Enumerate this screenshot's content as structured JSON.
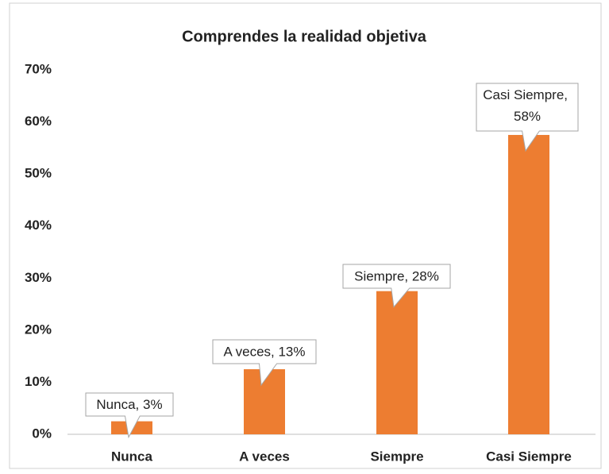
{
  "chart_data": {
    "type": "bar",
    "title": "Comprendes la realidad objetiva",
    "categories": [
      "Nunca",
      "A veces",
      "Siempre",
      "Casi Siempre"
    ],
    "values": [
      2.5,
      12.5,
      27.5,
      57.5
    ],
    "value_labels": [
      "Nunca, 3%",
      "A veces, 13%",
      "Siempre, 28%",
      "Casi Siempre, 58%"
    ],
    "color": "#ed7d31",
    "ylim": [
      0,
      70
    ],
    "yticks": [
      {
        "value": 0,
        "label": "0%"
      },
      {
        "value": 10,
        "label": "10%"
      },
      {
        "value": 20,
        "label": "20%"
      },
      {
        "value": 30,
        "label": "30%"
      },
      {
        "value": 40,
        "label": "40%"
      },
      {
        "value": 50,
        "label": "50%"
      },
      {
        "value": 60,
        "label": "60%"
      },
      {
        "value": 70,
        "label": "70%"
      }
    ],
    "grid": false
  }
}
